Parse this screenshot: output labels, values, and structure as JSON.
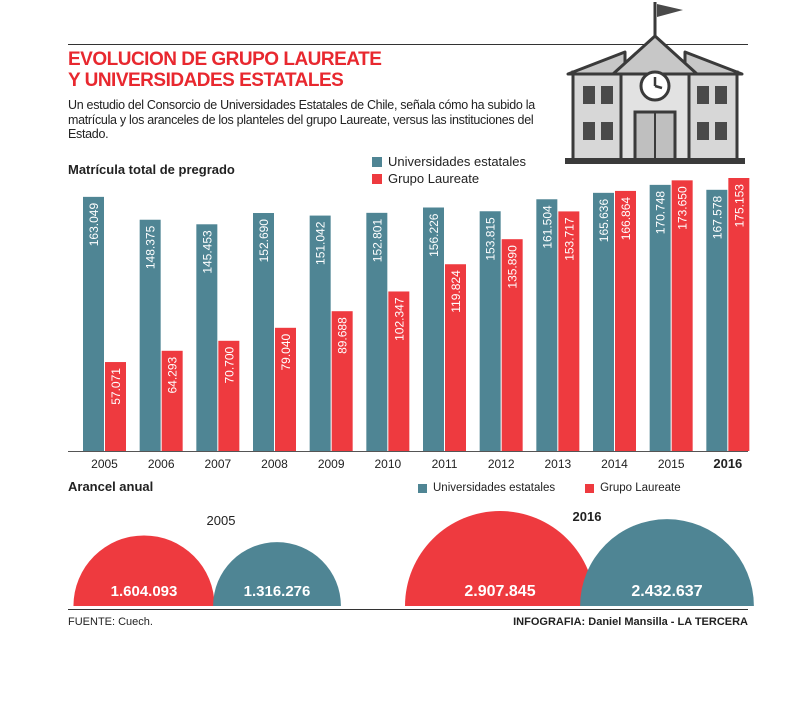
{
  "title_line1": "EVOLUCION DE GRUPO LAUREATE",
  "title_line2": "Y UNIVERSIDADES ESTATALES",
  "intro": "Un estudio del Consorcio de Universidades Estatales de Chile, señala cómo ha subido la matrícula y los aranceles de los planteles del grupo Laureate, versus las instituciones del Estado.",
  "source": "FUENTE: Cuech.",
  "credit": "INFOGRAFIA: Daniel Mansilla - LA TERCERA",
  "colors": {
    "estatales": "#4f8594",
    "laureate": "#ee3a3f"
  },
  "icons": {
    "building": "school-building-icon"
  },
  "chart_data": [
    {
      "type": "bar",
      "title": "Matrícula total de pregrado",
      "categories": [
        "2005",
        "2006",
        "2007",
        "2008",
        "2009",
        "2010",
        "2011",
        "2012",
        "2013",
        "2014",
        "2015",
        "2016"
      ],
      "series": [
        {
          "name": "Universidades estatales",
          "color": "#4f8594",
          "values": [
            163049,
            148375,
            145453,
            152690,
            151042,
            152801,
            156226,
            153815,
            161504,
            165636,
            170748,
            167578
          ],
          "labels": [
            "163.049",
            "148.375",
            "145.453",
            "152.690",
            "151.042",
            "152.801",
            "156.226",
            "153.815",
            "161.504",
            "165.636",
            "170.748",
            "167.578"
          ]
        },
        {
          "name": "Grupo Laureate",
          "color": "#ee3a3f",
          "values": [
            57071,
            64293,
            70700,
            79040,
            89688,
            102347,
            119824,
            135890,
            153717,
            166864,
            173650,
            175153
          ],
          "labels": [
            "57.071",
            "64.293",
            "70.700",
            "79.040",
            "89.688",
            "102.347",
            "119.824",
            "135.890",
            "153.717",
            "166.864",
            "173.650",
            "175.153"
          ]
        }
      ],
      "ylim": [
        0,
        175153
      ],
      "legend": "top",
      "grid": false
    },
    {
      "type": "pie",
      "title": "Arancel anual",
      "legend_labels": [
        "Universidades estatales",
        "Grupo Laureate"
      ],
      "groups": [
        {
          "year": "2005",
          "laureate": 1604093,
          "laureate_label": "1.604.093",
          "estatales": 1316276,
          "estatales_label": "1.316.276"
        },
        {
          "year": "2016",
          "laureate": 2907845,
          "laureate_label": "2.907.845",
          "estatales": 2432637,
          "estatales_label": "2.432.637"
        }
      ]
    }
  ]
}
